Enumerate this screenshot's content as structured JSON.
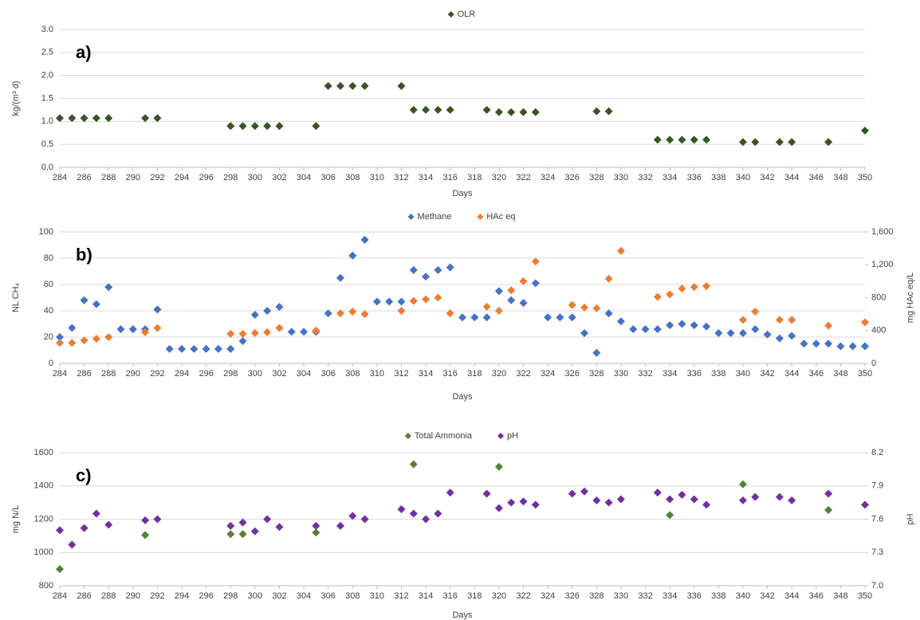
{
  "chart_data": [
    {
      "type": "scatter",
      "annotation": "a)",
      "x_label": "Days",
      "y_label": "kg/(m³ d)",
      "grid": true,
      "legend": "top",
      "xlim": [
        284,
        350
      ],
      "xticks": [
        284,
        286,
        288,
        290,
        292,
        294,
        296,
        298,
        300,
        302,
        304,
        306,
        308,
        310,
        312,
        314,
        316,
        318,
        320,
        322,
        324,
        326,
        328,
        330,
        332,
        334,
        336,
        338,
        340,
        342,
        344,
        346,
        348,
        350
      ],
      "ylim": [
        0,
        3
      ],
      "yticks": [
        {
          "value": 0,
          "label": "0.0"
        },
        0.5,
        {
          "value": 1,
          "label": "1.0"
        },
        1.5,
        {
          "value": 2,
          "label": "2.0"
        },
        2.5,
        {
          "value": 3,
          "label": "3.0"
        }
      ],
      "series": [
        {
          "name": "OLR",
          "color": "#375623",
          "x": [
            284,
            285,
            286,
            287,
            288,
            291,
            292,
            298,
            299,
            300,
            301,
            302,
            305,
            306,
            307,
            308,
            309,
            312,
            313,
            314,
            315,
            316,
            319,
            320,
            321,
            322,
            323,
            328,
            329,
            333,
            334,
            335,
            336,
            337,
            340,
            341,
            343,
            344,
            347,
            350
          ],
          "values": [
            1.07,
            1.07,
            1.07,
            1.07,
            1.07,
            1.07,
            1.07,
            0.9,
            0.9,
            0.9,
            0.9,
            0.9,
            0.9,
            1.77,
            1.77,
            1.77,
            1.77,
            1.77,
            1.25,
            1.25,
            1.25,
            1.25,
            1.25,
            1.2,
            1.2,
            1.2,
            1.2,
            1.22,
            1.22,
            0.6,
            0.6,
            0.6,
            0.6,
            0.6,
            0.55,
            0.55,
            0.55,
            0.55,
            0.55,
            0.8
          ]
        }
      ]
    },
    {
      "type": "scatter",
      "annotation": "b)",
      "x_label": "Days",
      "y_label": "NL CH₄",
      "y2_label": "mg HAc eq/L",
      "grid": true,
      "legend": "top",
      "xlim": [
        284,
        350
      ],
      "xticks": [
        284,
        286,
        288,
        290,
        292,
        294,
        296,
        298,
        300,
        302,
        304,
        306,
        308,
        310,
        312,
        314,
        316,
        318,
        320,
        322,
        324,
        326,
        328,
        330,
        332,
        334,
        336,
        338,
        340,
        342,
        344,
        346,
        348,
        350
      ],
      "ylim": [
        0,
        100
      ],
      "yticks": [
        0,
        20,
        40,
        60,
        80,
        100
      ],
      "y2lim": [
        0,
        1600
      ],
      "y2ticks": [
        0,
        400,
        800,
        {
          "value": 1200,
          "label": "1,200"
        },
        {
          "value": 1600,
          "label": "1,600"
        }
      ],
      "series": [
        {
          "name": "Methane",
          "color": "#4472c4",
          "x": [
            284,
            285,
            286,
            287,
            288,
            289,
            290,
            291,
            292,
            293,
            294,
            295,
            296,
            297,
            298,
            299,
            300,
            301,
            302,
            303,
            304,
            305,
            306,
            307,
            308,
            309,
            310,
            311,
            312,
            313,
            314,
            315,
            316,
            317,
            318,
            319,
            320,
            321,
            322,
            323,
            324,
            325,
            326,
            327,
            328,
            329,
            330,
            331,
            332,
            333,
            334,
            335,
            336,
            337,
            338,
            339,
            340,
            341,
            342,
            343,
            344,
            345,
            346,
            347,
            348,
            349,
            350
          ],
          "values": [
            20,
            27,
            48,
            45,
            58,
            26,
            26,
            26,
            41,
            11,
            11,
            11,
            11,
            11,
            11,
            17,
            37,
            40,
            43,
            24,
            24,
            24,
            38,
            65,
            82,
            94,
            47,
            47,
            47,
            71,
            66,
            71,
            73,
            35,
            35,
            35,
            55,
            48,
            46,
            61,
            35,
            35,
            35,
            23,
            8,
            38,
            32,
            26,
            26,
            26,
            29,
            30,
            29,
            28,
            23,
            23,
            23,
            26,
            22,
            19,
            21,
            15,
            15,
            15,
            13,
            13,
            13
          ]
        },
        {
          "name": "HAc eq",
          "color": "#ed7d31",
          "axis": "y2",
          "x": [
            284,
            285,
            286,
            287,
            288,
            291,
            292,
            298,
            299,
            300,
            301,
            302,
            305,
            307,
            308,
            309,
            312,
            313,
            314,
            315,
            316,
            319,
            320,
            321,
            322,
            323,
            326,
            327,
            328,
            329,
            330,
            333,
            334,
            335,
            336,
            337,
            340,
            341,
            343,
            344,
            347,
            350
          ],
          "values": [
            250,
            250,
            280,
            300,
            320,
            380,
            430,
            360,
            360,
            370,
            380,
            430,
            400,
            610,
            630,
            600,
            640,
            760,
            780,
            800,
            610,
            690,
            640,
            890,
            1000,
            1240,
            710,
            680,
            670,
            1030,
            1370,
            810,
            840,
            910,
            930,
            940,
            530,
            630,
            530,
            530,
            460,
            500
          ]
        }
      ]
    },
    {
      "type": "scatter",
      "annotation": "c)",
      "x_label": "Days",
      "y_label": "mg N/L",
      "y2_label": "pH",
      "grid": true,
      "legend": "top",
      "xlim": [
        284,
        350
      ],
      "xticks": [
        284,
        286,
        288,
        290,
        292,
        294,
        296,
        298,
        300,
        302,
        304,
        306,
        308,
        310,
        312,
        314,
        316,
        318,
        320,
        322,
        324,
        326,
        328,
        330,
        332,
        334,
        336,
        338,
        340,
        342,
        344,
        346,
        348,
        350
      ],
      "ylim": [
        800,
        1600
      ],
      "yticks": [
        800,
        1000,
        1200,
        1400,
        1600
      ],
      "y2lim": [
        7,
        8.2
      ],
      "y2ticks": [
        {
          "value": 7,
          "label": "7.0"
        },
        7.3,
        7.6,
        7.9,
        8.2
      ],
      "series": [
        {
          "name": "Total Ammonia",
          "color": "#548235",
          "x": [
            284,
            291,
            298,
            299,
            305,
            313,
            320,
            334,
            340,
            347
          ],
          "values": [
            900,
            1105,
            1110,
            1110,
            1120,
            1530,
            1515,
            1225,
            1410,
            1255
          ]
        },
        {
          "name": "pH",
          "color": "#7030a0",
          "axis": "y2",
          "x": [
            284,
            285,
            286,
            287,
            288,
            291,
            292,
            298,
            299,
            300,
            301,
            302,
            305,
            307,
            308,
            309,
            312,
            313,
            314,
            315,
            316,
            319,
            320,
            321,
            322,
            323,
            326,
            327,
            328,
            329,
            330,
            333,
            334,
            335,
            336,
            337,
            340,
            341,
            343,
            344,
            347,
            350
          ],
          "values": [
            7.5,
            7.37,
            7.52,
            7.65,
            7.55,
            7.59,
            7.6,
            7.54,
            7.57,
            7.49,
            7.6,
            7.53,
            7.54,
            7.54,
            7.63,
            7.6,
            7.69,
            7.65,
            7.6,
            7.65,
            7.84,
            7.83,
            7.7,
            7.75,
            7.76,
            7.73,
            7.83,
            7.85,
            7.77,
            7.75,
            7.78,
            7.84,
            7.78,
            7.82,
            7.78,
            7.73,
            7.77,
            7.8,
            7.8,
            7.77,
            7.83,
            7.73
          ]
        }
      ]
    }
  ]
}
